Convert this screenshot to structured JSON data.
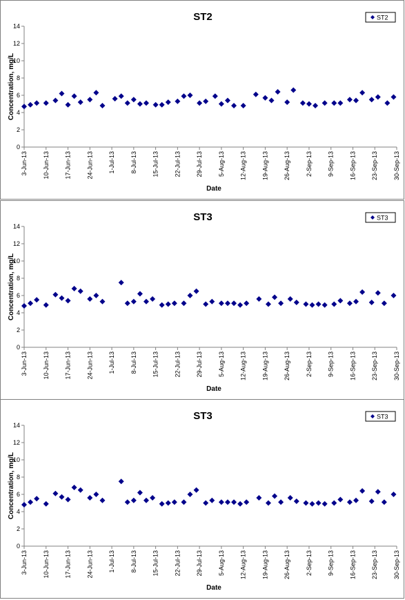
{
  "colors": {
    "marker": "#00008B",
    "axis": "#808080",
    "frame": "#7f7f7f"
  },
  "chart_data": [
    {
      "type": "scatter",
      "title": "ST2",
      "xlabel": "Date",
      "ylabel": "Concentration, mg/L",
      "legend": {
        "position": "top-right",
        "entries": [
          "ST2"
        ]
      },
      "ylim": [
        0,
        14
      ],
      "yticks": [
        "0",
        "2",
        "4",
        "6",
        "8",
        "10",
        "12",
        "14"
      ],
      "xlim": [
        "2013-06-03",
        "2013-09-30"
      ],
      "xticks": [
        "3-Jun-13",
        "10-Jun-13",
        "17-Jun-13",
        "24-Jun-13",
        "1-Jul-13",
        "8-Jul-13",
        "15-Jul-13",
        "22-Jul-13",
        "29-Jul-13",
        "5-Aug-13",
        "12-Aug-13",
        "19-Aug-13",
        "26-Aug-13",
        "2-Sep-13",
        "9-Sep-13",
        "16-Sep-13",
        "23-Sep-13",
        "30-Sep-13"
      ],
      "grid": false,
      "series": [
        {
          "name": "ST2",
          "x": [
            "2013-06-03",
            "2013-06-05",
            "2013-06-07",
            "2013-06-10",
            "2013-06-13",
            "2013-06-15",
            "2013-06-17",
            "2013-06-19",
            "2013-06-21",
            "2013-06-24",
            "2013-06-26",
            "2013-06-28",
            "2013-07-02",
            "2013-07-04",
            "2013-07-06",
            "2013-07-08",
            "2013-07-10",
            "2013-07-12",
            "2013-07-15",
            "2013-07-17",
            "2013-07-19",
            "2013-07-22",
            "2013-07-24",
            "2013-07-26",
            "2013-07-29",
            "2013-07-31",
            "2013-08-03",
            "2013-08-05",
            "2013-08-07",
            "2013-08-09",
            "2013-08-12",
            "2013-08-16",
            "2013-08-19",
            "2013-08-21",
            "2013-08-23",
            "2013-08-26",
            "2013-08-28",
            "2013-08-31",
            "2013-09-02",
            "2013-09-04",
            "2013-09-07",
            "2013-09-10",
            "2013-09-12",
            "2013-09-15",
            "2013-09-17",
            "2013-09-19",
            "2013-09-22",
            "2013-09-24",
            "2013-09-27",
            "2013-09-29"
          ],
          "y": [
            4.7,
            4.9,
            5.1,
            5.1,
            5.4,
            6.2,
            4.9,
            5.9,
            5.2,
            5.5,
            6.3,
            4.8,
            5.6,
            5.9,
            5.1,
            5.5,
            5.0,
            5.1,
            4.9,
            4.9,
            5.2,
            5.3,
            5.9,
            6.0,
            5.1,
            5.3,
            5.9,
            5.0,
            5.4,
            4.8,
            4.8,
            6.1,
            5.7,
            5.4,
            6.4,
            5.2,
            6.6,
            5.1,
            5.0,
            4.8,
            5.1,
            5.1,
            5.1,
            5.5,
            5.4,
            6.3,
            5.5,
            5.8,
            5.1,
            5.8
          ]
        }
      ]
    },
    {
      "type": "scatter",
      "title": "ST3",
      "xlabel": "Date",
      "ylabel": "Concentration, mg/L",
      "legend": {
        "position": "top-right",
        "entries": [
          "ST3"
        ]
      },
      "ylim": [
        0,
        14
      ],
      "yticks": [
        "0",
        "2",
        "4",
        "6",
        "8",
        "10",
        "12",
        "14"
      ],
      "xlim": [
        "2013-06-03",
        "2013-09-30"
      ],
      "xticks": [
        "3-Jun-13",
        "10-Jun-13",
        "17-Jun-13",
        "24-Jun-13",
        "1-Jul-13",
        "8-Jul-13",
        "15-Jul-13",
        "22-Jul-13",
        "29-Jul-13",
        "5-Aug-13",
        "12-Aug-13",
        "19-Aug-13",
        "26-Aug-13",
        "2-Sep-13",
        "9-Sep-13",
        "16-Sep-13",
        "23-Sep-13",
        "30-Sep-13"
      ],
      "grid": false,
      "series": [
        {
          "name": "ST3",
          "x": [
            "2013-06-03",
            "2013-06-05",
            "2013-06-07",
            "2013-06-10",
            "2013-06-13",
            "2013-06-15",
            "2013-06-17",
            "2013-06-19",
            "2013-06-21",
            "2013-06-24",
            "2013-06-26",
            "2013-06-28",
            "2013-07-04",
            "2013-07-06",
            "2013-07-08",
            "2013-07-10",
            "2013-07-12",
            "2013-07-14",
            "2013-07-17",
            "2013-07-19",
            "2013-07-21",
            "2013-07-24",
            "2013-07-26",
            "2013-07-28",
            "2013-07-31",
            "2013-08-02",
            "2013-08-05",
            "2013-08-07",
            "2013-08-09",
            "2013-08-11",
            "2013-08-13",
            "2013-08-17",
            "2013-08-20",
            "2013-08-22",
            "2013-08-24",
            "2013-08-27",
            "2013-08-29",
            "2013-09-01",
            "2013-09-03",
            "2013-09-05",
            "2013-09-07",
            "2013-09-10",
            "2013-09-12",
            "2013-09-15",
            "2013-09-17",
            "2013-09-19",
            "2013-09-22",
            "2013-09-24",
            "2013-09-26",
            "2013-09-29"
          ],
          "y": [
            4.8,
            5.1,
            5.5,
            4.9,
            6.1,
            5.7,
            5.4,
            6.8,
            6.5,
            5.6,
            6.0,
            5.3,
            7.5,
            5.1,
            5.3,
            6.2,
            5.3,
            5.6,
            4.9,
            5.0,
            5.1,
            5.1,
            6.0,
            6.5,
            5.0,
            5.3,
            5.1,
            5.1,
            5.1,
            4.9,
            5.1,
            5.6,
            5.0,
            5.8,
            5.1,
            5.6,
            5.2,
            5.0,
            4.9,
            5.0,
            4.9,
            5.0,
            5.4,
            5.1,
            5.3,
            6.4,
            5.2,
            6.3,
            5.1,
            6.0
          ]
        }
      ]
    },
    {
      "type": "scatter",
      "title": "ST3",
      "xlabel": "Date",
      "ylabel": "Concentration, mg/L",
      "legend": {
        "position": "top-right",
        "entries": [
          "ST3"
        ]
      },
      "ylim": [
        0,
        14
      ],
      "yticks": [
        "0",
        "2",
        "4",
        "6",
        "8",
        "10",
        "12",
        "14"
      ],
      "xlim": [
        "2013-06-03",
        "2013-09-30"
      ],
      "xticks": [
        "3-Jun-13",
        "10-Jun-13",
        "17-Jun-13",
        "24-Jun-13",
        "1-Jul-13",
        "8-Jul-13",
        "15-Jul-13",
        "22-Jul-13",
        "29-Jul-13",
        "5-Aug-13",
        "12-Aug-13",
        "19-Aug-13",
        "26-Aug-13",
        "2-Sep-13",
        "9-Sep-13",
        "16-Sep-13",
        "23-Sep-13",
        "30-Sep-13"
      ],
      "grid": false,
      "series": [
        {
          "name": "ST3",
          "x": [
            "2013-06-03",
            "2013-06-05",
            "2013-06-07",
            "2013-06-10",
            "2013-06-13",
            "2013-06-15",
            "2013-06-17",
            "2013-06-19",
            "2013-06-21",
            "2013-06-24",
            "2013-06-26",
            "2013-06-28",
            "2013-07-04",
            "2013-07-06",
            "2013-07-08",
            "2013-07-10",
            "2013-07-12",
            "2013-07-14",
            "2013-07-17",
            "2013-07-19",
            "2013-07-21",
            "2013-07-24",
            "2013-07-26",
            "2013-07-28",
            "2013-07-31",
            "2013-08-02",
            "2013-08-05",
            "2013-08-07",
            "2013-08-09",
            "2013-08-11",
            "2013-08-13",
            "2013-08-17",
            "2013-08-20",
            "2013-08-22",
            "2013-08-24",
            "2013-08-27",
            "2013-08-29",
            "2013-09-01",
            "2013-09-03",
            "2013-09-05",
            "2013-09-07",
            "2013-09-10",
            "2013-09-12",
            "2013-09-15",
            "2013-09-17",
            "2013-09-19",
            "2013-09-22",
            "2013-09-24",
            "2013-09-26",
            "2013-09-29"
          ],
          "y": [
            4.8,
            5.1,
            5.5,
            4.9,
            6.1,
            5.7,
            5.4,
            6.8,
            6.5,
            5.6,
            6.0,
            5.3,
            7.5,
            5.1,
            5.3,
            6.2,
            5.3,
            5.6,
            4.9,
            5.0,
            5.1,
            5.1,
            6.0,
            6.5,
            5.0,
            5.3,
            5.1,
            5.1,
            5.1,
            4.9,
            5.1,
            5.6,
            5.0,
            5.8,
            5.1,
            5.6,
            5.2,
            5.0,
            4.9,
            5.0,
            4.9,
            5.0,
            5.4,
            5.1,
            5.3,
            6.4,
            5.2,
            6.3,
            5.1,
            6.0
          ]
        }
      ]
    }
  ]
}
